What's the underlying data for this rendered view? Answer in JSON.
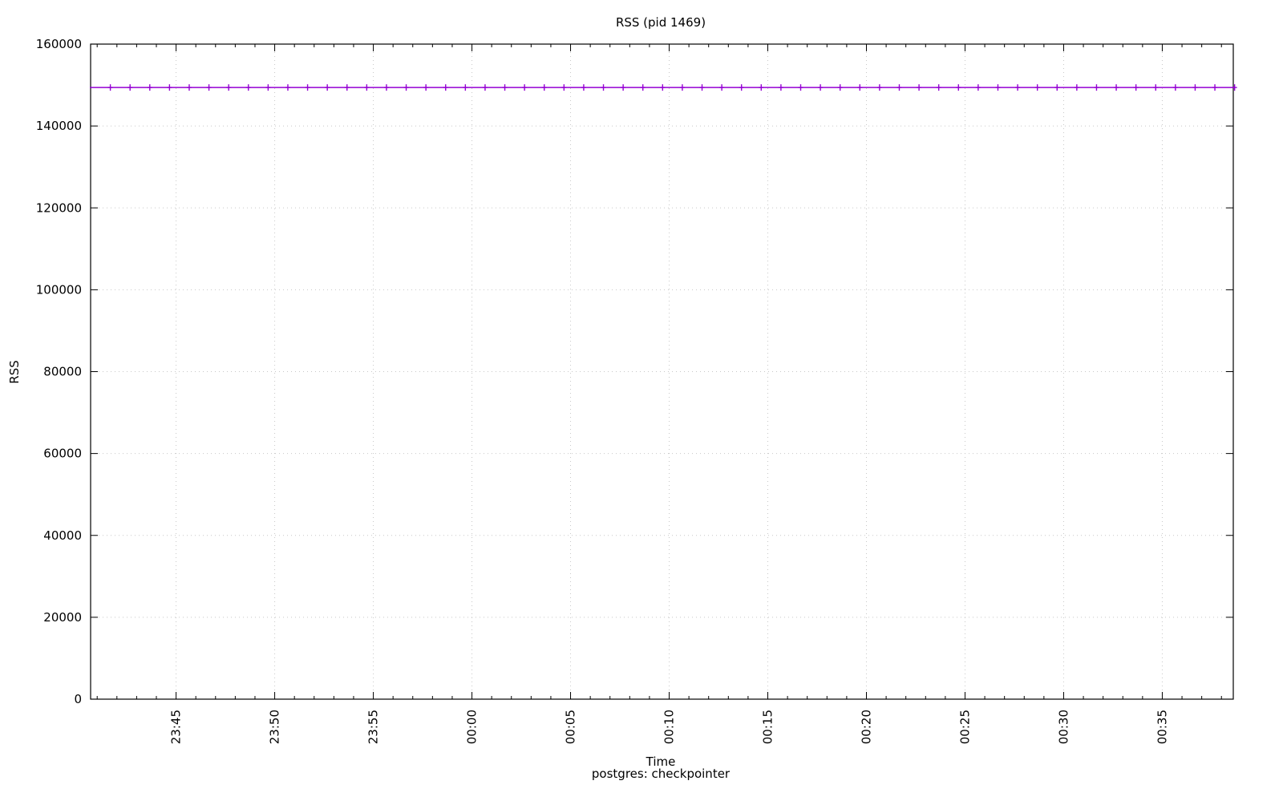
{
  "chart_data": {
    "type": "line",
    "title": "RSS (pid 1469)",
    "xlabel": "Time",
    "subtitle": "postgres: checkpointer",
    "ylabel": "RSS",
    "xlim": [
      "23:40:40",
      "00:38:36"
    ],
    "ylim": [
      0,
      160000
    ],
    "yticks": [
      0,
      20000,
      40000,
      60000,
      80000,
      100000,
      120000,
      140000,
      160000
    ],
    "xticks": [
      "23:45",
      "23:50",
      "23:55",
      "00:00",
      "00:05",
      "00:10",
      "00:15",
      "00:20",
      "00:25",
      "00:30",
      "00:35"
    ],
    "grid": true,
    "legend": "none",
    "series": [
      {
        "color": "#9400d3",
        "marker": "plus",
        "x": [
          "23:41:40",
          "23:42:40",
          "23:43:40",
          "23:44:40",
          "23:45:40",
          "23:46:40",
          "23:47:40",
          "23:48:40",
          "23:49:40",
          "23:50:40",
          "23:51:40",
          "23:52:40",
          "23:53:40",
          "23:54:40",
          "23:55:40",
          "23:56:40",
          "23:57:40",
          "23:58:40",
          "23:59:40",
          "00:00:40",
          "00:01:40",
          "00:02:40",
          "00:03:40",
          "00:04:40",
          "00:05:40",
          "00:06:40",
          "00:07:40",
          "00:08:40",
          "00:09:40",
          "00:10:40",
          "00:11:40",
          "00:12:40",
          "00:13:40",
          "00:14:40",
          "00:15:40",
          "00:16:40",
          "00:17:40",
          "00:18:40",
          "00:19:40",
          "00:20:40",
          "00:21:40",
          "00:22:40",
          "00:23:40",
          "00:24:40",
          "00:25:40",
          "00:26:40",
          "00:27:40",
          "00:28:40",
          "00:29:40",
          "00:30:40",
          "00:31:40",
          "00:32:40",
          "00:33:40",
          "00:34:40",
          "00:35:40",
          "00:36:40",
          "00:37:40",
          "00:38:40"
        ],
        "y": [
          149400,
          149400,
          149400,
          149400,
          149400,
          149400,
          149400,
          149400,
          149400,
          149400,
          149400,
          149400,
          149400,
          149400,
          149400,
          149400,
          149400,
          149400,
          149400,
          149400,
          149400,
          149400,
          149400,
          149400,
          149400,
          149400,
          149400,
          149400,
          149400,
          149400,
          149400,
          149400,
          149400,
          149400,
          149400,
          149400,
          149400,
          149400,
          149400,
          149400,
          149400,
          149400,
          149400,
          149400,
          149400,
          149400,
          149400,
          149400,
          149400,
          149400,
          149400,
          149400,
          149400,
          149400,
          149400,
          149400,
          149400,
          149400
        ]
      }
    ]
  }
}
